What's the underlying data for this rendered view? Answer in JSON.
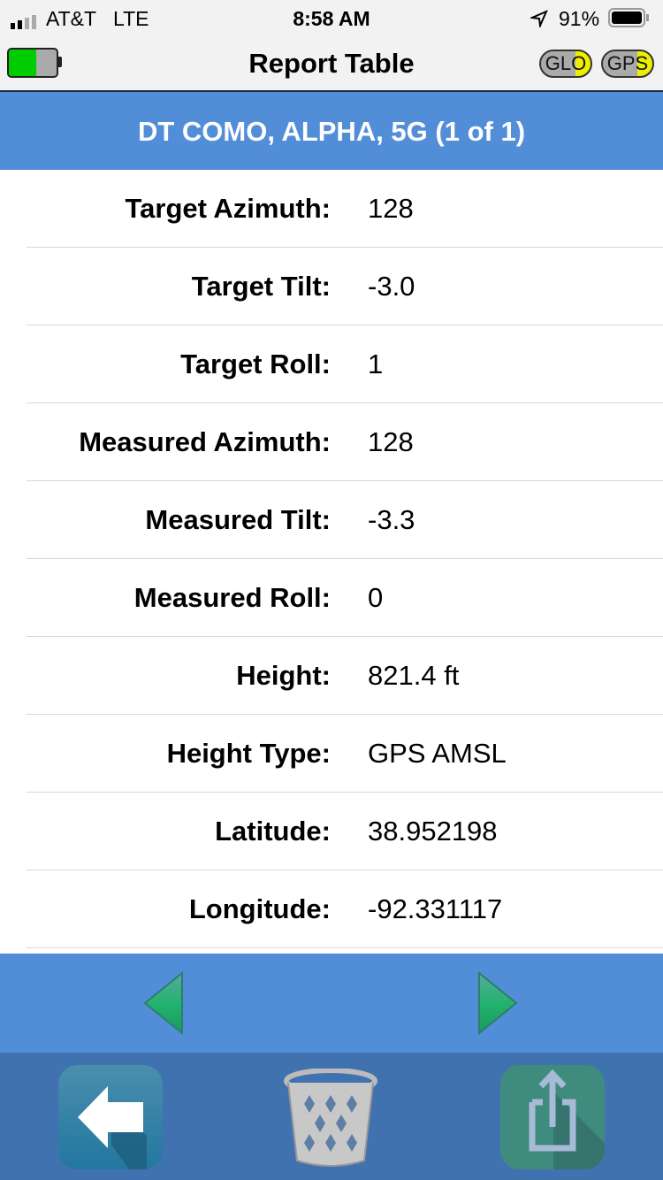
{
  "status_bar": {
    "carrier": "AT&T",
    "network": "LTE",
    "time": "8:58 AM",
    "battery": "91%"
  },
  "nav": {
    "title": "Report Table",
    "device_battery_level": 0.58,
    "badges": [
      "GLO",
      "GPS"
    ]
  },
  "header": {
    "title": "DT COMO, ALPHA, 5G (1 of 1)"
  },
  "rows": [
    {
      "label": "Target Azimuth:",
      "value": "128"
    },
    {
      "label": "Target Tilt:",
      "value": "-3.0"
    },
    {
      "label": "Target Roll:",
      "value": "1"
    },
    {
      "label": "Measured Azimuth:",
      "value": "128"
    },
    {
      "label": "Measured Tilt:",
      "value": "-3.3"
    },
    {
      "label": "Measured Roll:",
      "value": "0"
    },
    {
      "label": "Height:",
      "value": "821.4 ft"
    },
    {
      "label": "Height Type:",
      "value": "GPS AMSL"
    },
    {
      "label": "Latitude:",
      "value": "38.952198"
    },
    {
      "label": "Longitude:",
      "value": "-92.331117"
    }
  ],
  "colors": {
    "accent": "#528ed8",
    "toolbar": "#4172b0",
    "nav_arrow": "#1fa566"
  },
  "icons": {
    "prev": "triangle-left-icon",
    "next": "triangle-right-icon",
    "back": "arrow-left-icon",
    "trash": "trash-basket-icon",
    "share": "share-icon"
  }
}
